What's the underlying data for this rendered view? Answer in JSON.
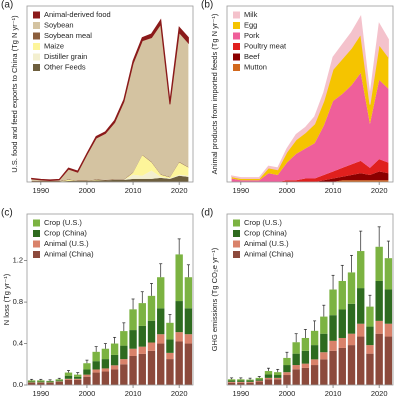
{
  "chart_data": [
    {
      "type": "area",
      "panel_label": "(a)",
      "ylabel": "U.S. food and feed exports to China (Tg N yr⁻¹)",
      "x": [
        1988,
        1990,
        1992,
        1994,
        1996,
        1998,
        2000,
        2002,
        2004,
        2006,
        2008,
        2010,
        2012,
        2014,
        2016,
        2018,
        2020,
        2022
      ],
      "xlim": [
        1987,
        2023
      ],
      "xticks": [
        1990,
        2000,
        2010,
        2020
      ],
      "ylim": [
        0,
        1.7
      ],
      "series": [
        {
          "name": "Animal-derived food",
          "color": "#8b1a1a",
          "values": [
            0.005,
            0.005,
            0.005,
            0.005,
            0.01,
            0.01,
            0.01,
            0.015,
            0.015,
            0.02,
            0.02,
            0.025,
            0.03,
            0.035,
            0.04,
            0.03,
            0.05,
            0.05
          ]
        },
        {
          "name": "Soybean",
          "color": "#d4c3a1",
          "values": [
            0.02,
            0.01,
            0.005,
            0.01,
            0.1,
            0.08,
            0.25,
            0.4,
            0.45,
            0.55,
            0.75,
            1.05,
            1.1,
            1.2,
            1.45,
            0.7,
            1.25,
            1.2
          ]
        },
        {
          "name": "Soybean meal",
          "color": "#8b5e3c",
          "values": [
            0.005,
            0.005,
            0.005,
            0.005,
            0.005,
            0.005,
            0.005,
            0.005,
            0.005,
            0.005,
            0.005,
            0.005,
            0.005,
            0.005,
            0.005,
            0.005,
            0.005,
            0.005
          ]
        },
        {
          "name": "Maize",
          "color": "#fdf59a",
          "values": [
            0,
            0,
            0,
            0,
            0.01,
            0,
            0,
            0.005,
            0,
            0,
            0,
            0.02,
            0.2,
            0.08,
            0.02,
            0.01,
            0.12,
            0.08
          ]
        },
        {
          "name": "Distiller grain",
          "color": "#f3efcf",
          "values": [
            0,
            0,
            0,
            0,
            0,
            0,
            0,
            0,
            0,
            0,
            0,
            0.04,
            0.03,
            0.08,
            0.01,
            0.005,
            0.01,
            0.01
          ]
        },
        {
          "name": "Other Feeds",
          "color": "#6e5f3e",
          "values": [
            0.005,
            0.005,
            0.005,
            0.005,
            0.01,
            0.01,
            0.01,
            0.015,
            0.015,
            0.02,
            0.02,
            0.03,
            0.03,
            0.03,
            0.04,
            0.03,
            0.06,
            0.05
          ]
        }
      ]
    },
    {
      "type": "area",
      "panel_label": "(b)",
      "ylabel": "Animal products from imported feeds (Tg N yr⁻¹)",
      "x": [
        1988,
        1990,
        1992,
        1994,
        1996,
        1998,
        2000,
        2002,
        2004,
        2006,
        2008,
        2010,
        2012,
        2014,
        2016,
        2018,
        2020,
        2022
      ],
      "xlim": [
        1987,
        2023
      ],
      "xticks": [
        1990,
        2000,
        2010,
        2020
      ],
      "ylim": [
        0,
        0.1
      ],
      "series": [
        {
          "name": "Milk",
          "color": "#f4c2cc",
          "values": [
            0.0005,
            0.0005,
            0.0005,
            0.0005,
            0.001,
            0.001,
            0.002,
            0.003,
            0.003,
            0.004,
            0.005,
            0.007,
            0.008,
            0.009,
            0.01,
            0.005,
            0.012,
            0.01
          ]
        },
        {
          "name": "Egg",
          "color": "#f5c400",
          "values": [
            0.001,
            0.001,
            0.001,
            0.001,
            0.003,
            0.003,
            0.006,
            0.008,
            0.009,
            0.011,
            0.014,
            0.018,
            0.02,
            0.021,
            0.022,
            0.011,
            0.02,
            0.018
          ]
        },
        {
          "name": "Pork",
          "color": "#ef5f9a",
          "values": [
            0.002,
            0.001,
            0.001,
            0.001,
            0.005,
            0.004,
            0.01,
            0.015,
            0.017,
            0.02,
            0.028,
            0.04,
            0.042,
            0.045,
            0.05,
            0.025,
            0.045,
            0.042
          ]
        },
        {
          "name": "Poultry meat",
          "color": "#e0201e",
          "values": [
            0,
            0,
            0,
            0,
            0,
            0,
            0.001,
            0.001,
            0.002,
            0.002,
            0.003,
            0.004,
            0.005,
            0.006,
            0.007,
            0.004,
            0.007,
            0.006
          ]
        },
        {
          "name": "Beef",
          "color": "#8b0000",
          "values": [
            0,
            0,
            0,
            0,
            0,
            0,
            0,
            0,
            0,
            0,
            0.001,
            0.002,
            0.002,
            0.003,
            0.004,
            0.003,
            0.005,
            0.004
          ]
        },
        {
          "name": "Mutton",
          "color": "#d2691e",
          "values": [
            0,
            0,
            0,
            0,
            0,
            0,
            0,
            0,
            0,
            0,
            0,
            0,
            0.001,
            0.001,
            0.001,
            0.001,
            0.001,
            0.001
          ]
        }
      ]
    },
    {
      "type": "bar",
      "panel_label": "(c)",
      "ylabel": "N loss (Tg yr⁻¹)",
      "x": [
        1988,
        1990,
        1992,
        1994,
        1996,
        1998,
        2000,
        2002,
        2004,
        2006,
        2008,
        2010,
        2012,
        2014,
        2016,
        2018,
        2020,
        2022
      ],
      "xlim": [
        1987,
        2023
      ],
      "xticks": [
        1990,
        2000,
        2010,
        2020
      ],
      "ylim": [
        0,
        1.65
      ],
      "yticks": [
        {
          "value": 0,
          "label": "0.0"
        },
        0.4,
        0.8,
        1.2
      ],
      "series": [
        {
          "name": "Crop (U.S.)",
          "color": "#7cb342",
          "values": [
            0.01,
            0.01,
            0.005,
            0.01,
            0.03,
            0.02,
            0.06,
            0.09,
            0.1,
            0.11,
            0.14,
            0.2,
            0.22,
            0.24,
            0.3,
            0.16,
            0.45,
            0.3
          ]
        },
        {
          "name": "Crop (China)",
          "color": "#2e6b1f",
          "values": [
            0.01,
            0.01,
            0.01,
            0.01,
            0.03,
            0.02,
            0.05,
            0.08,
            0.09,
            0.1,
            0.13,
            0.18,
            0.2,
            0.21,
            0.25,
            0.13,
            0.3,
            0.25
          ]
        },
        {
          "name": "Animal (U.S.)",
          "color": "#d9826a",
          "values": [
            0.005,
            0.005,
            0.005,
            0.005,
            0.01,
            0.01,
            0.02,
            0.03,
            0.03,
            0.04,
            0.05,
            0.07,
            0.07,
            0.08,
            0.09,
            0.06,
            0.09,
            0.09
          ]
        },
        {
          "name": "Animal (China)",
          "color": "#8c4a3c",
          "values": [
            0.02,
            0.02,
            0.02,
            0.03,
            0.05,
            0.05,
            0.08,
            0.12,
            0.13,
            0.15,
            0.2,
            0.28,
            0.3,
            0.33,
            0.4,
            0.25,
            0.42,
            0.4
          ]
        }
      ],
      "errors": [
        0.01,
        0.01,
        0.01,
        0.01,
        0.02,
        0.02,
        0.03,
        0.05,
        0.05,
        0.06,
        0.08,
        0.1,
        0.11,
        0.12,
        0.13,
        0.08,
        0.15,
        0.12
      ]
    },
    {
      "type": "bar",
      "panel_label": "(d)",
      "ylabel": "GHG emissions (Tg CO₂e yr⁻¹)",
      "x": [
        1988,
        1990,
        1992,
        1994,
        1996,
        1998,
        2000,
        2002,
        2004,
        2006,
        2008,
        2010,
        2012,
        2014,
        2016,
        2018,
        2020,
        2022
      ],
      "xlim": [
        1987,
        2023
      ],
      "xticks": [
        1990,
        2000,
        2010,
        2020
      ],
      "ylim": [
        0,
        60
      ],
      "series": [
        {
          "name": "Crop (U.S.)",
          "color": "#7cb342",
          "values": [
            0.4,
            0.4,
            0.3,
            0.5,
            1.2,
            1,
            2.5,
            4,
            4.5,
            5,
            6,
            9,
            10,
            11,
            13,
            7,
            12,
            11
          ]
        },
        {
          "name": "Crop (China)",
          "color": "#2e6b1f",
          "values": [
            0.5,
            0.5,
            0.5,
            0.5,
            1.2,
            1,
            2.5,
            4,
            4.5,
            5,
            6.5,
            9,
            10,
            10.5,
            12.5,
            6.5,
            14,
            12
          ]
        },
        {
          "name": "Animal (U.S.)",
          "color": "#d9826a",
          "values": [
            0.3,
            0.3,
            0.3,
            0.3,
            0.5,
            0.5,
            1,
            1.5,
            1.5,
            2,
            2.5,
            3.5,
            3.5,
            4,
            4.5,
            3,
            4.5,
            4.5
          ]
        },
        {
          "name": "Animal (China)",
          "color": "#8c4a3c",
          "values": [
            0.8,
            0.8,
            0.8,
            1.2,
            2,
            2,
            3.5,
            5.5,
            6,
            7,
            9,
            12,
            13,
            14,
            17,
            11,
            18,
            17
          ]
        }
      ],
      "errors": [
        0.5,
        0.5,
        0.5,
        0.5,
        1,
        1,
        2,
        3,
        3,
        3.5,
        4,
        5,
        5.5,
        6,
        7,
        4,
        7,
        6
      ]
    }
  ]
}
